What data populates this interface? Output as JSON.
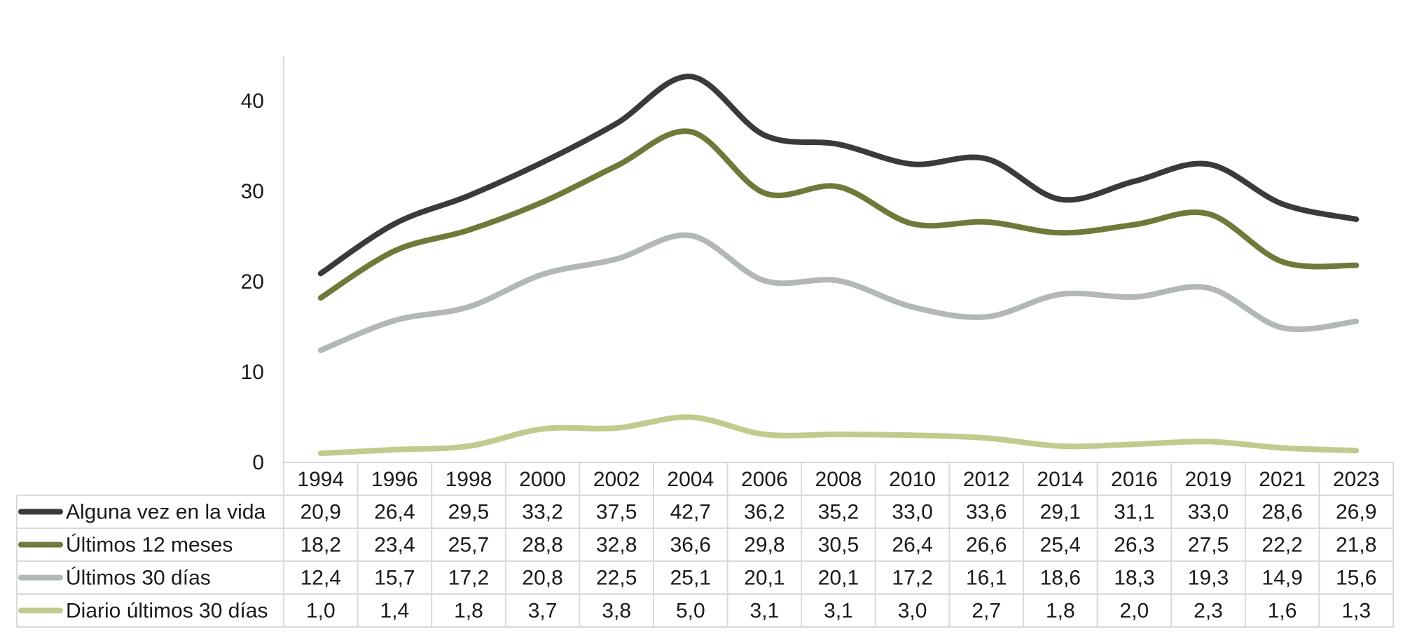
{
  "chart_data": {
    "type": "line",
    "categories": [
      "1994",
      "1996",
      "1998",
      "2000",
      "2002",
      "2004",
      "2006",
      "2008",
      "2010",
      "2012",
      "2014",
      "2016",
      "2019",
      "2021",
      "2023"
    ],
    "ylim": [
      0,
      45
    ],
    "yticks": [
      0,
      10,
      20,
      30,
      40
    ],
    "grid": false,
    "legend": "table-left",
    "series": [
      {
        "name": "Alguna vez en la vida",
        "color": "#3a3a3a",
        "values": [
          20.9,
          26.4,
          29.5,
          33.2,
          37.5,
          42.7,
          36.2,
          35.2,
          33.0,
          33.6,
          29.1,
          31.1,
          33.0,
          28.6,
          26.9
        ],
        "labels": [
          "20,9",
          "26,4",
          "29,5",
          "33,2",
          "37,5",
          "42,7",
          "36,2",
          "35,2",
          "33,0",
          "33,6",
          "29,1",
          "31,1",
          "33,0",
          "28,6",
          "26,9"
        ]
      },
      {
        "name": "Últimos 12 meses",
        "color": "#6e7a3a",
        "values": [
          18.2,
          23.4,
          25.7,
          28.8,
          32.8,
          36.6,
          29.8,
          30.5,
          26.4,
          26.6,
          25.4,
          26.3,
          27.5,
          22.2,
          21.8
        ],
        "labels": [
          "18,2",
          "23,4",
          "25,7",
          "28,8",
          "32,8",
          "36,6",
          "29,8",
          "30,5",
          "26,4",
          "26,6",
          "25,4",
          "26,3",
          "27,5",
          "22,2",
          "21,8"
        ]
      },
      {
        "name": "Últimos 30 días",
        "color": "#b2b8b5",
        "values": [
          12.4,
          15.7,
          17.2,
          20.8,
          22.5,
          25.1,
          20.1,
          20.1,
          17.2,
          16.1,
          18.6,
          18.3,
          19.3,
          14.9,
          15.6
        ],
        "labels": [
          "12,4",
          "15,7",
          "17,2",
          "20,8",
          "22,5",
          "25,1",
          "20,1",
          "20,1",
          "17,2",
          "16,1",
          "18,6",
          "18,3",
          "19,3",
          "14,9",
          "15,6"
        ]
      },
      {
        "name": "Diario últimos 30 días",
        "color": "#bfcc8d",
        "values": [
          1.0,
          1.4,
          1.8,
          3.7,
          3.8,
          5.0,
          3.1,
          3.1,
          3.0,
          2.7,
          1.8,
          2.0,
          2.3,
          1.6,
          1.3
        ],
        "labels": [
          "1,0",
          "1,4",
          "1,8",
          "3,7",
          "3,8",
          "5,0",
          "3,1",
          "3,1",
          "3,0",
          "2,7",
          "1,8",
          "2,0",
          "2,3",
          "1,6",
          "1,3"
        ]
      }
    ]
  }
}
